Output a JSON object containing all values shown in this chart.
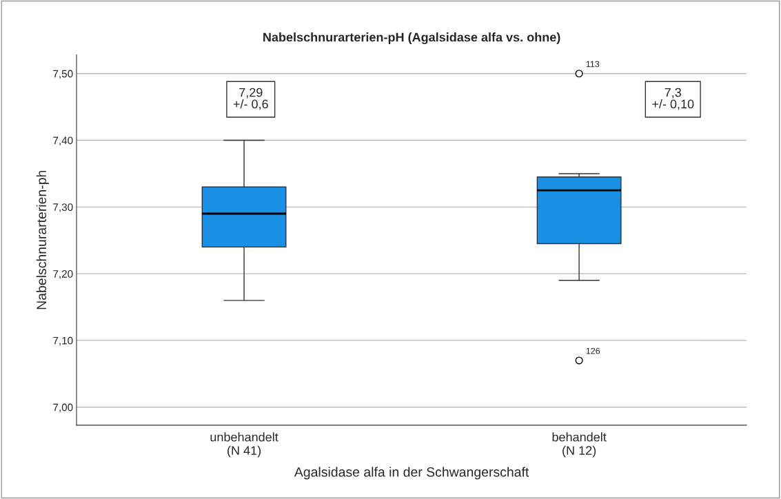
{
  "chart_data": {
    "type": "box",
    "title": "Nabelschnurarterien-pH (Agalsidase alfa vs. ohne)",
    "xlabel": "Agalsidase alfa in der Schwangerschaft",
    "ylabel": "Nabelschnurarterien-ph",
    "categories": [
      "unbehandelt\n(N 41)",
      "behandelt\n(N 12)"
    ],
    "color": "#1a8fe3",
    "boxes": [
      {
        "low": 7.16,
        "q1": 7.24,
        "median": 7.29,
        "q3": 7.33,
        "high": 7.4
      },
      {
        "low": 7.19,
        "q1": 7.245,
        "median": 7.325,
        "q3": 7.345,
        "high": 7.35,
        "outliers": [
          7.5,
          7.07
        ]
      }
    ],
    "ylim": [
      6.973,
      7.528
    ],
    "yticks": [
      {
        "value": 7.0,
        "label": "7,00"
      },
      {
        "value": 7.1,
        "label": "7,10"
      },
      {
        "value": 7.2,
        "label": "7,20"
      },
      {
        "value": 7.3,
        "label": "7,30"
      },
      {
        "value": 7.4,
        "label": "7,40"
      },
      {
        "value": 7.5,
        "label": "7,50"
      }
    ],
    "grid": "y",
    "annotations": [
      "113",
      "126",
      "7,29\n+/- 0,6",
      "7,3\n+/- 0,10"
    ]
  }
}
